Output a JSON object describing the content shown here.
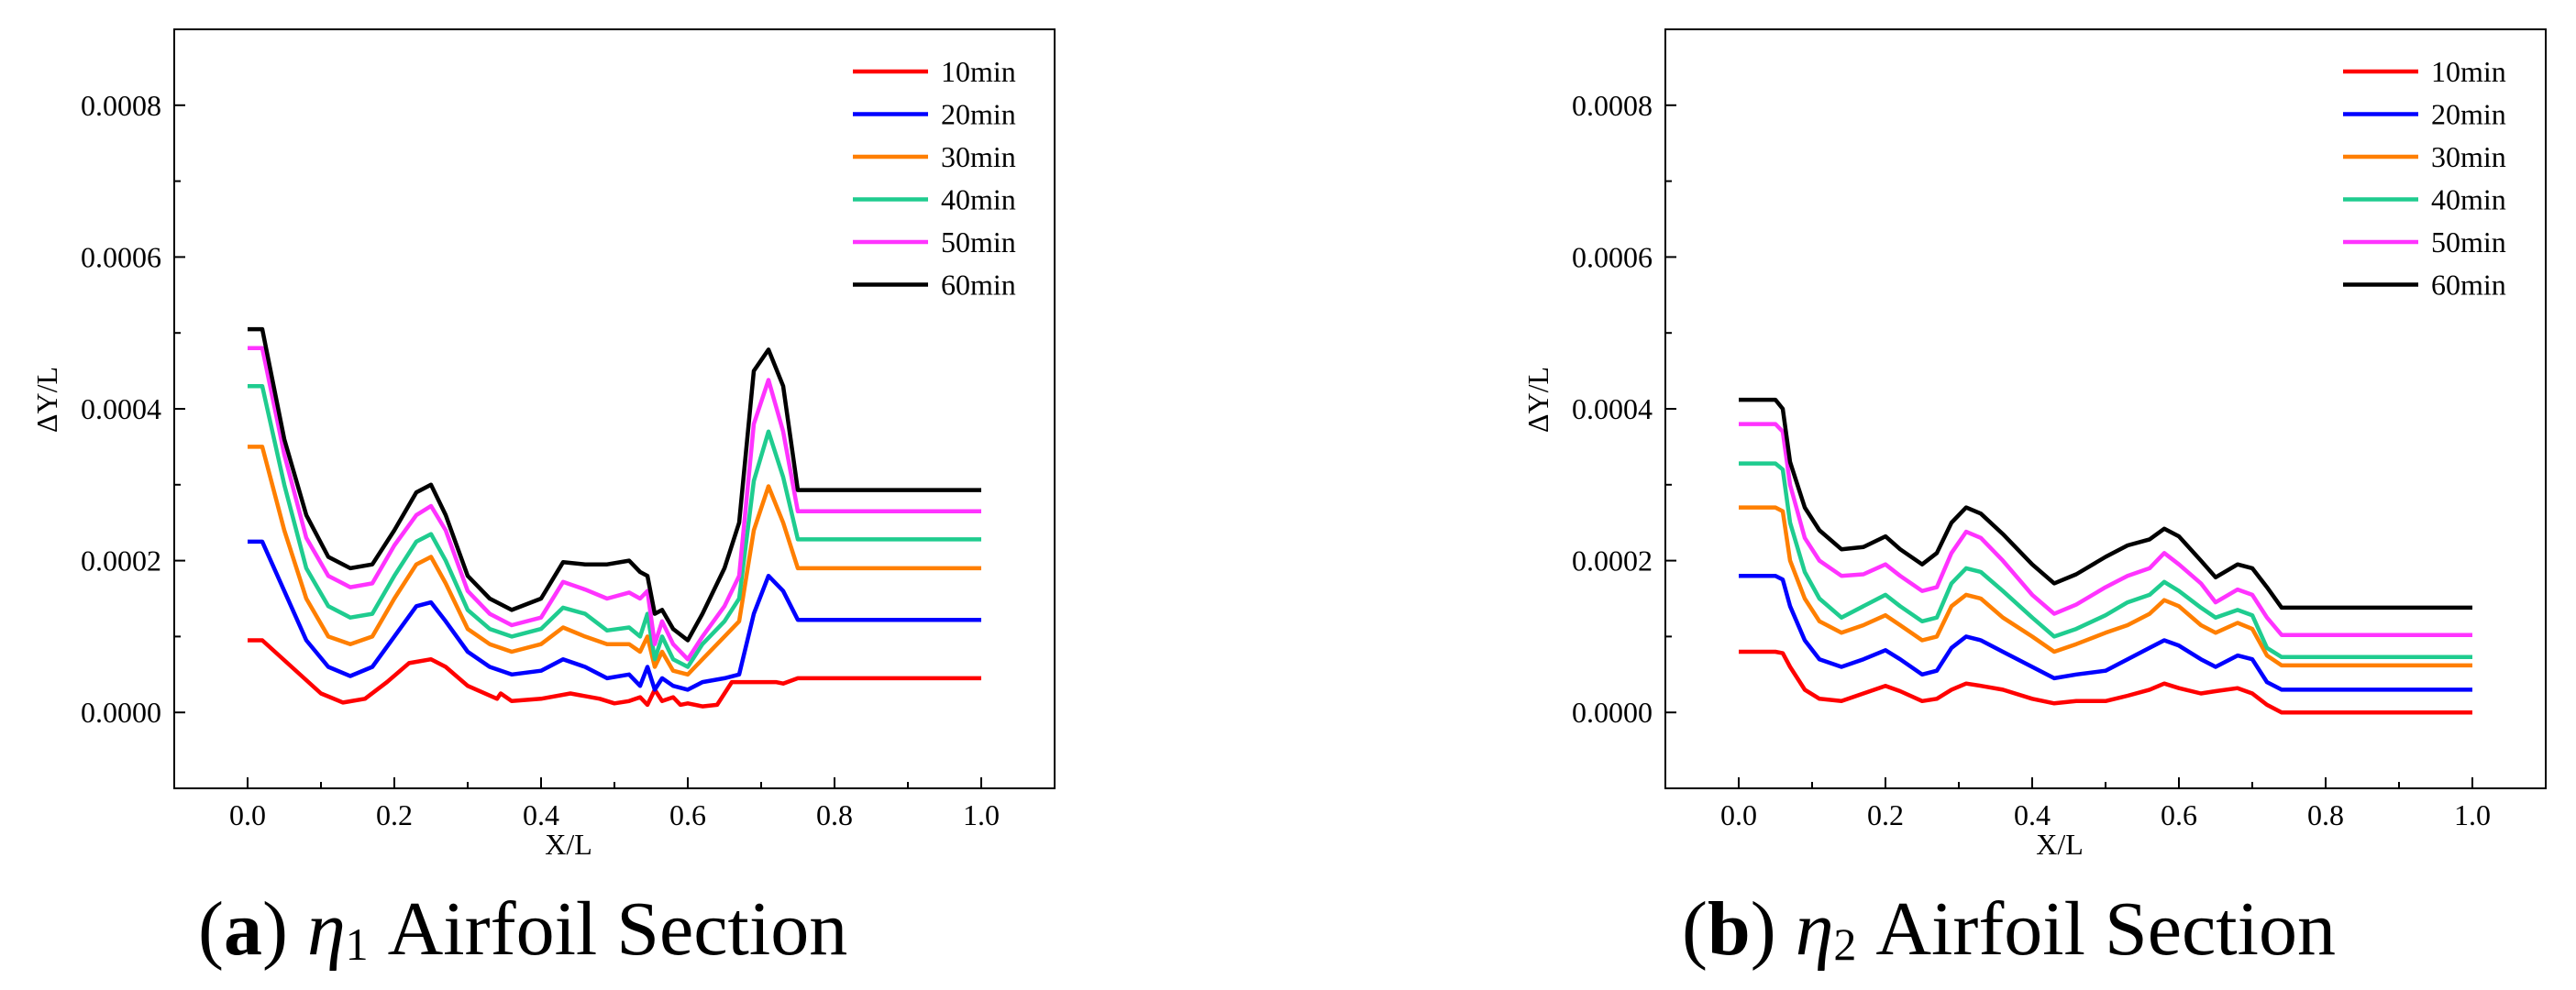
{
  "figure_captions": [
    {
      "letter": "a",
      "symbol": "η",
      "subscript": "1",
      "text": "Airfoil Section"
    },
    {
      "letter": "b",
      "symbol": "η",
      "subscript": "2",
      "text": "Airfoil Section"
    }
  ],
  "colors": {
    "10min": "#ff0000",
    "20min": "#0000ff",
    "30min": "#ff7f00",
    "40min": "#1fcc8f",
    "50min": "#ff33ff",
    "60min": "#000000"
  },
  "chart_data": [
    {
      "type": "line",
      "title": "",
      "xlabel": "X/L",
      "ylabel": "ΔY/L",
      "xlim": [
        -0.1,
        1.1
      ],
      "ylim": [
        -0.0001,
        0.0009
      ],
      "xticks": [
        "0.0",
        "0.2",
        "0.4",
        "0.6",
        "0.8",
        "1.0"
      ],
      "yticks": [
        "0.0000",
        "0.0002",
        "0.0004",
        "0.0006",
        "0.0008"
      ],
      "legend_position": "top-right",
      "legend": [
        "10min",
        "20min",
        "30min",
        "40min",
        "50min",
        "60min"
      ],
      "series": [
        {
          "name": "10min",
          "x": [
            0.0,
            0.02,
            0.06,
            0.1,
            0.13,
            0.16,
            0.19,
            0.22,
            0.25,
            0.27,
            0.3,
            0.34,
            0.345,
            0.36,
            0.4,
            0.44,
            0.48,
            0.5,
            0.52,
            0.535,
            0.545,
            0.555,
            0.565,
            0.58,
            0.59,
            0.6,
            0.62,
            0.64,
            0.66,
            0.68,
            0.7,
            0.72,
            0.73,
            0.75,
            1.0
          ],
          "y": [
            9.5e-05,
            9.5e-05,
            6e-05,
            2.5e-05,
            1.3e-05,
            1.8e-05,
            4e-05,
            6.5e-05,
            7e-05,
            6e-05,
            3.5e-05,
            1.8e-05,
            2.5e-05,
            1.5e-05,
            1.8e-05,
            2.5e-05,
            1.8e-05,
            1.2e-05,
            1.5e-05,
            2e-05,
            1e-05,
            3e-05,
            1.5e-05,
            2e-05,
            1e-05,
            1.2e-05,
            8e-06,
            1e-05,
            4e-05,
            4e-05,
            4e-05,
            4e-05,
            3.8e-05,
            4.5e-05,
            4.5e-05
          ]
        },
        {
          "name": "20min",
          "x": [
            0.0,
            0.02,
            0.05,
            0.08,
            0.11,
            0.14,
            0.17,
            0.2,
            0.23,
            0.25,
            0.27,
            0.3,
            0.33,
            0.36,
            0.4,
            0.43,
            0.46,
            0.49,
            0.52,
            0.535,
            0.545,
            0.555,
            0.565,
            0.58,
            0.6,
            0.62,
            0.65,
            0.67,
            0.69,
            0.71,
            0.73,
            0.75,
            1.0
          ],
          "y": [
            0.000225,
            0.000225,
            0.00016,
            9.5e-05,
            6e-05,
            4.8e-05,
            6e-05,
            0.0001,
            0.00014,
            0.000145,
            0.00012,
            8e-05,
            6e-05,
            5e-05,
            5.5e-05,
            7e-05,
            6e-05,
            4.5e-05,
            5e-05,
            3.5e-05,
            6e-05,
            3e-05,
            4.5e-05,
            3.5e-05,
            3e-05,
            4e-05,
            4.5e-05,
            5e-05,
            0.00013,
            0.00018,
            0.00016,
            0.000122,
            0.000122
          ]
        },
        {
          "name": "30min",
          "x": [
            0.0,
            0.02,
            0.05,
            0.08,
            0.11,
            0.14,
            0.17,
            0.2,
            0.23,
            0.25,
            0.27,
            0.3,
            0.33,
            0.36,
            0.4,
            0.43,
            0.46,
            0.49,
            0.52,
            0.535,
            0.545,
            0.555,
            0.565,
            0.58,
            0.6,
            0.62,
            0.65,
            0.67,
            0.69,
            0.71,
            0.73,
            0.75,
            1.0
          ],
          "y": [
            0.00035,
            0.00035,
            0.00024,
            0.00015,
            0.0001,
            9e-05,
            0.0001,
            0.00015,
            0.000195,
            0.000205,
            0.00017,
            0.00011,
            9e-05,
            8e-05,
            9e-05,
            0.000112,
            0.0001,
            9e-05,
            9e-05,
            8e-05,
            0.0001,
            6e-05,
            8e-05,
            5.5e-05,
            5e-05,
            7e-05,
            0.0001,
            0.00012,
            0.00024,
            0.000298,
            0.00025,
            0.00019,
            0.00019
          ]
        },
        {
          "name": "40min",
          "x": [
            0.0,
            0.02,
            0.05,
            0.08,
            0.11,
            0.14,
            0.17,
            0.2,
            0.23,
            0.25,
            0.27,
            0.3,
            0.33,
            0.36,
            0.4,
            0.43,
            0.46,
            0.49,
            0.52,
            0.535,
            0.545,
            0.555,
            0.565,
            0.58,
            0.6,
            0.62,
            0.65,
            0.67,
            0.69,
            0.71,
            0.73,
            0.75,
            1.0
          ],
          "y": [
            0.00043,
            0.00043,
            0.0003,
            0.00019,
            0.00014,
            0.000125,
            0.00013,
            0.00018,
            0.000225,
            0.000235,
            0.0002,
            0.000135,
            0.00011,
            0.0001,
            0.00011,
            0.000138,
            0.00013,
            0.000108,
            0.000112,
            0.0001,
            0.00013,
            7e-05,
            0.0001,
            7e-05,
            6e-05,
            9e-05,
            0.00012,
            0.00015,
            0.000305,
            0.00037,
            0.00031,
            0.000228,
            0.000228
          ]
        },
        {
          "name": "50min",
          "x": [
            0.0,
            0.02,
            0.05,
            0.08,
            0.11,
            0.14,
            0.17,
            0.2,
            0.23,
            0.25,
            0.27,
            0.3,
            0.33,
            0.36,
            0.4,
            0.43,
            0.46,
            0.49,
            0.52,
            0.535,
            0.545,
            0.555,
            0.565,
            0.58,
            0.6,
            0.62,
            0.65,
            0.67,
            0.69,
            0.71,
            0.73,
            0.75,
            1.0
          ],
          "y": [
            0.00048,
            0.00048,
            0.00034,
            0.00023,
            0.00018,
            0.000165,
            0.00017,
            0.00022,
            0.00026,
            0.000272,
            0.00024,
            0.00016,
            0.00013,
            0.000115,
            0.000125,
            0.000172,
            0.000162,
            0.00015,
            0.000158,
            0.00015,
            0.00016,
            9e-05,
            0.00012,
            9e-05,
            7e-05,
            0.0001,
            0.00014,
            0.00018,
            0.00038,
            0.000438,
            0.00037,
            0.000265,
            0.000265
          ]
        },
        {
          "name": "60min",
          "x": [
            0.0,
            0.02,
            0.05,
            0.08,
            0.11,
            0.14,
            0.17,
            0.2,
            0.23,
            0.25,
            0.27,
            0.3,
            0.33,
            0.36,
            0.4,
            0.43,
            0.46,
            0.49,
            0.52,
            0.535,
            0.545,
            0.555,
            0.565,
            0.58,
            0.6,
            0.62,
            0.65,
            0.67,
            0.69,
            0.71,
            0.73,
            0.75,
            1.0
          ],
          "y": [
            0.000505,
            0.000505,
            0.00036,
            0.00026,
            0.000205,
            0.00019,
            0.000195,
            0.00024,
            0.00029,
            0.0003,
            0.00026,
            0.00018,
            0.00015,
            0.000135,
            0.00015,
            0.000198,
            0.000195,
            0.000195,
            0.0002,
            0.000185,
            0.00018,
            0.00013,
            0.000135,
            0.00011,
            9.5e-05,
            0.00013,
            0.00019,
            0.00025,
            0.00045,
            0.000478,
            0.00043,
            0.000293,
            0.000293
          ]
        }
      ]
    },
    {
      "type": "line",
      "title": "",
      "xlabel": "X/L",
      "ylabel": "ΔY/L",
      "xlim": [
        -0.1,
        1.1
      ],
      "ylim": [
        -0.0001,
        0.0009
      ],
      "xticks": [
        "0.0",
        "0.2",
        "0.4",
        "0.6",
        "0.8",
        "1.0"
      ],
      "yticks": [
        "0.0000",
        "0.0002",
        "0.0004",
        "0.0006",
        "0.0008"
      ],
      "legend_position": "top-right",
      "legend": [
        "10min",
        "20min",
        "30min",
        "40min",
        "50min",
        "60min"
      ],
      "series": [
        {
          "name": "10min",
          "x": [
            0.0,
            0.05,
            0.06,
            0.07,
            0.09,
            0.11,
            0.14,
            0.17,
            0.2,
            0.22,
            0.25,
            0.27,
            0.29,
            0.31,
            0.33,
            0.36,
            0.4,
            0.43,
            0.46,
            0.5,
            0.53,
            0.56,
            0.58,
            0.6,
            0.63,
            0.65,
            0.68,
            0.7,
            0.72,
            0.74,
            1.0
          ],
          "y": [
            8e-05,
            8e-05,
            7.8e-05,
            6e-05,
            3e-05,
            1.8e-05,
            1.5e-05,
            2.5e-05,
            3.5e-05,
            2.8e-05,
            1.5e-05,
            1.8e-05,
            3e-05,
            3.8e-05,
            3.5e-05,
            3e-05,
            1.8e-05,
            1.2e-05,
            1.5e-05,
            1.5e-05,
            2.2e-05,
            3e-05,
            3.8e-05,
            3.2e-05,
            2.5e-05,
            2.8e-05,
            3.2e-05,
            2.5e-05,
            1e-05,
            0.0,
            0.0
          ]
        },
        {
          "name": "20min",
          "x": [
            0.0,
            0.05,
            0.06,
            0.07,
            0.09,
            0.11,
            0.14,
            0.17,
            0.2,
            0.22,
            0.25,
            0.27,
            0.29,
            0.31,
            0.33,
            0.36,
            0.4,
            0.43,
            0.46,
            0.5,
            0.53,
            0.56,
            0.58,
            0.6,
            0.63,
            0.65,
            0.68,
            0.7,
            0.72,
            0.74,
            1.0
          ],
          "y": [
            0.00018,
            0.00018,
            0.000175,
            0.00014,
            9.5e-05,
            7e-05,
            6e-05,
            7e-05,
            8.2e-05,
            7e-05,
            5e-05,
            5.5e-05,
            8.5e-05,
            0.0001,
            9.5e-05,
            8e-05,
            6e-05,
            4.5e-05,
            5e-05,
            5.5e-05,
            7e-05,
            8.5e-05,
            9.5e-05,
            8.8e-05,
            7e-05,
            6e-05,
            7.5e-05,
            7e-05,
            4e-05,
            3e-05,
            3e-05
          ]
        },
        {
          "name": "30min",
          "x": [
            0.0,
            0.05,
            0.06,
            0.07,
            0.09,
            0.11,
            0.14,
            0.17,
            0.2,
            0.22,
            0.25,
            0.27,
            0.29,
            0.31,
            0.33,
            0.36,
            0.4,
            0.43,
            0.46,
            0.5,
            0.53,
            0.56,
            0.58,
            0.6,
            0.63,
            0.65,
            0.68,
            0.7,
            0.72,
            0.74,
            1.0
          ],
          "y": [
            0.00027,
            0.00027,
            0.000265,
            0.0002,
            0.00015,
            0.00012,
            0.000105,
            0.000115,
            0.000128,
            0.000115,
            9.5e-05,
            0.0001,
            0.00014,
            0.000155,
            0.00015,
            0.000125,
            0.0001,
            8e-05,
            9e-05,
            0.000105,
            0.000115,
            0.00013,
            0.000148,
            0.00014,
            0.000115,
            0.000105,
            0.000118,
            0.00011,
            7.5e-05,
            6.2e-05,
            6.2e-05
          ]
        },
        {
          "name": "40min",
          "x": [
            0.0,
            0.05,
            0.06,
            0.07,
            0.09,
            0.11,
            0.14,
            0.17,
            0.2,
            0.22,
            0.25,
            0.27,
            0.29,
            0.31,
            0.33,
            0.36,
            0.4,
            0.43,
            0.46,
            0.5,
            0.53,
            0.56,
            0.58,
            0.6,
            0.63,
            0.65,
            0.68,
            0.7,
            0.72,
            0.74,
            1.0
          ],
          "y": [
            0.000328,
            0.000328,
            0.00032,
            0.00025,
            0.000185,
            0.00015,
            0.000125,
            0.00014,
            0.000155,
            0.00014,
            0.00012,
            0.000125,
            0.00017,
            0.00019,
            0.000185,
            0.00016,
            0.000125,
            0.0001,
            0.00011,
            0.000128,
            0.000145,
            0.000155,
            0.000172,
            0.00016,
            0.000138,
            0.000125,
            0.000135,
            0.000128,
            8.5e-05,
            7.3e-05,
            7.3e-05
          ]
        },
        {
          "name": "50min",
          "x": [
            0.0,
            0.05,
            0.06,
            0.07,
            0.09,
            0.11,
            0.14,
            0.17,
            0.2,
            0.22,
            0.25,
            0.27,
            0.29,
            0.31,
            0.33,
            0.36,
            0.4,
            0.43,
            0.46,
            0.5,
            0.53,
            0.56,
            0.58,
            0.6,
            0.63,
            0.65,
            0.68,
            0.7,
            0.72,
            0.74,
            1.0
          ],
          "y": [
            0.00038,
            0.00038,
            0.00037,
            0.0003,
            0.00023,
            0.0002,
            0.00018,
            0.000182,
            0.000195,
            0.00018,
            0.00016,
            0.000165,
            0.00021,
            0.000238,
            0.00023,
            0.0002,
            0.000155,
            0.00013,
            0.000142,
            0.000165,
            0.00018,
            0.00019,
            0.00021,
            0.000195,
            0.00017,
            0.000145,
            0.000162,
            0.000155,
            0.000125,
            0.000102,
            0.000102
          ]
        },
        {
          "name": "60min",
          "x": [
            0.0,
            0.05,
            0.06,
            0.07,
            0.09,
            0.11,
            0.14,
            0.17,
            0.2,
            0.22,
            0.25,
            0.27,
            0.29,
            0.31,
            0.33,
            0.36,
            0.4,
            0.43,
            0.46,
            0.5,
            0.53,
            0.56,
            0.58,
            0.6,
            0.63,
            0.65,
            0.68,
            0.7,
            0.72,
            0.74,
            1.0
          ],
          "y": [
            0.000412,
            0.000412,
            0.0004,
            0.00033,
            0.00027,
            0.00024,
            0.000215,
            0.000218,
            0.000232,
            0.000215,
            0.000195,
            0.00021,
            0.00025,
            0.00027,
            0.000262,
            0.000235,
            0.000195,
            0.00017,
            0.000182,
            0.000205,
            0.00022,
            0.000228,
            0.000242,
            0.000232,
            0.0002,
            0.000178,
            0.000195,
            0.00019,
            0.000165,
            0.000138,
            0.000138
          ]
        }
      ]
    }
  ]
}
